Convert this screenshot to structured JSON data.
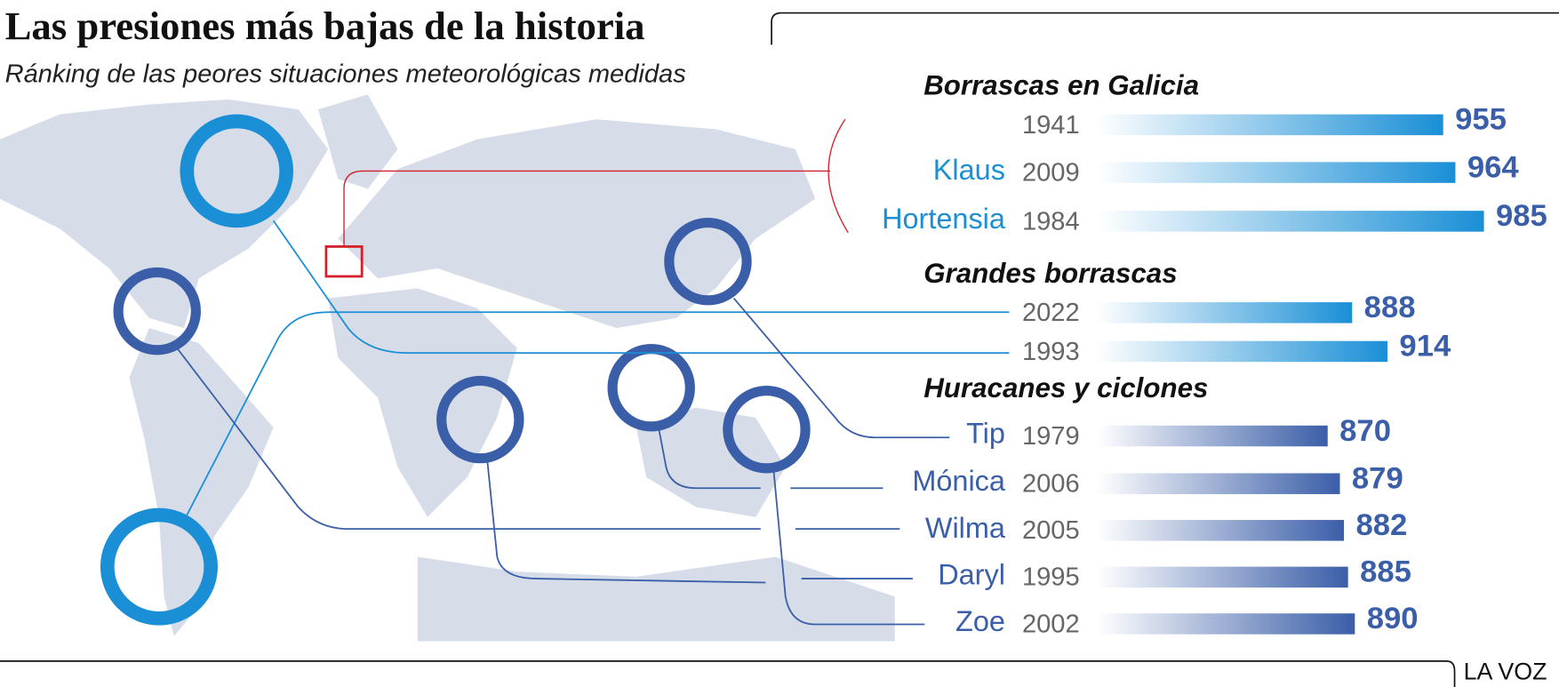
{
  "chart_data": {
    "type": "bar",
    "title": "Las presiones más bajas de la historia",
    "subtitle": "Ránking de las peores situaciones meteorológicas medidas",
    "source": "LA VOZ",
    "xlim": [
      700,
      1000
    ],
    "groups": [
      {
        "name": "Borrascas en Galicia",
        "color": "#1a8fd6",
        "items": [
          {
            "year": 1941,
            "value": 955
          },
          {
            "name": "Klaus",
            "year": 2009,
            "value": 964
          },
          {
            "name": "Hortensia",
            "year": 1984,
            "value": 985
          }
        ]
      },
      {
        "name": "Grandes borrascas",
        "color": "#1a8fd6",
        "items": [
          {
            "year": 2022,
            "value": 888
          },
          {
            "year": 1993,
            "value": 914
          }
        ]
      },
      {
        "name": "Huracanes y ciclones",
        "color": "#3a5ea8",
        "items": [
          {
            "name": "Tip",
            "year": 1979,
            "value": 870
          },
          {
            "name": "Mónica",
            "year": 2006,
            "value": 879
          },
          {
            "name": "Wilma",
            "year": 2005,
            "value": 882
          },
          {
            "name": "Daryl",
            "year": 1995,
            "value": 885
          },
          {
            "name": "Zoe",
            "year": 2002,
            "value": 890
          }
        ]
      }
    ]
  }
}
